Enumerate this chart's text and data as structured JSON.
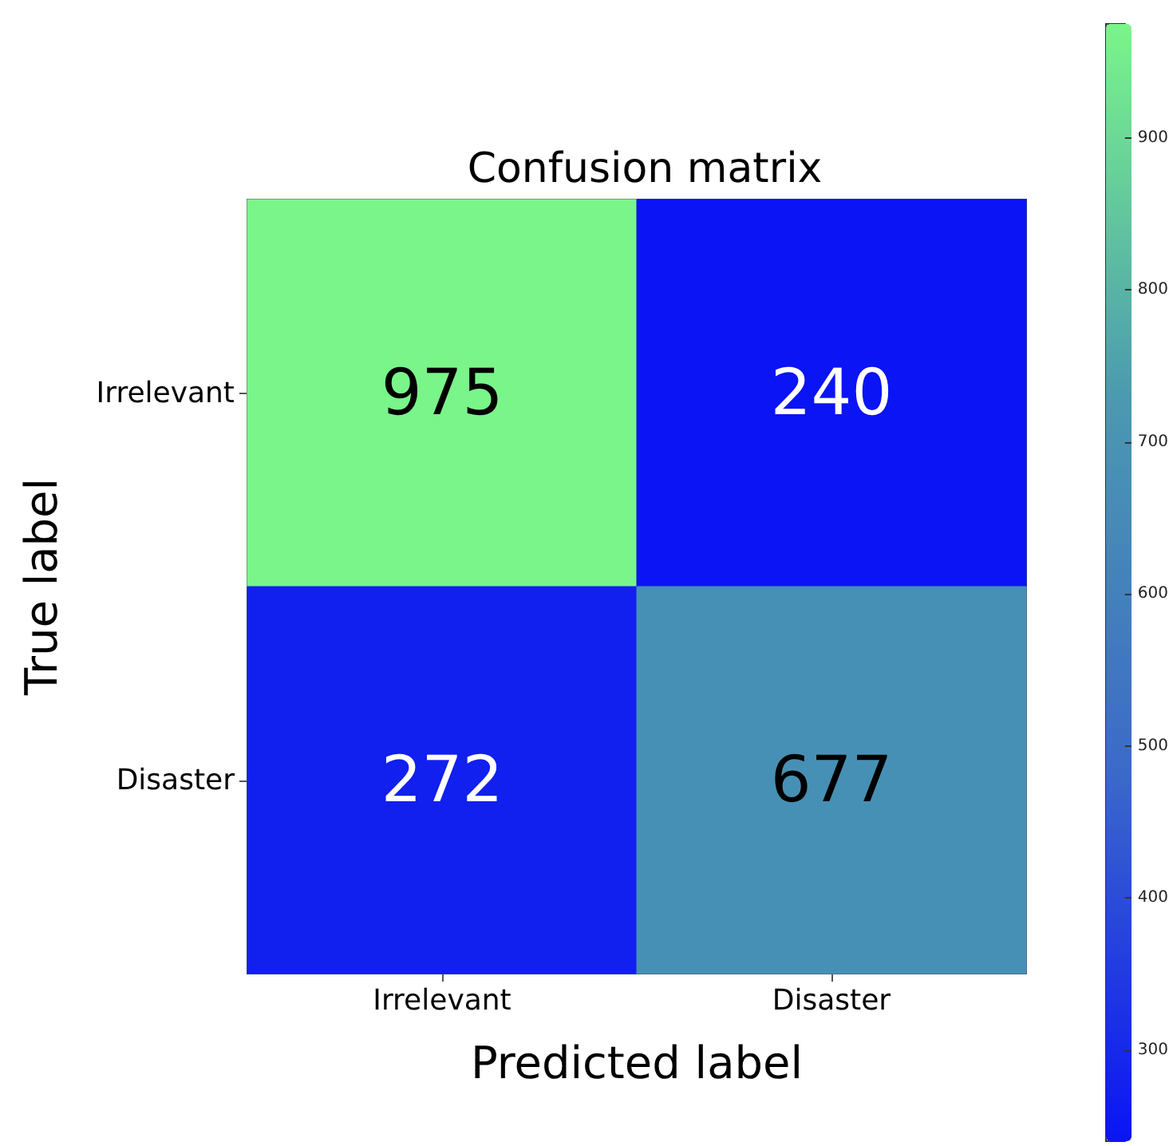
{
  "chart_data": {
    "type": "heatmap",
    "title": "Confusion matrix",
    "xlabel": "Predicted label",
    "ylabel": "True label",
    "categories": [
      "Irrelevant",
      "Disaster"
    ],
    "y_categories": [
      "Irrelevant",
      "Disaster"
    ],
    "cells": [
      [
        975,
        240
      ],
      [
        272,
        677
      ]
    ],
    "data_labels": true,
    "colors": [
      "#0a14f5",
      "#3c6ac8",
      "#4a9ab0",
      "#7af58a"
    ],
    "clim": [
      240,
      975
    ],
    "cticks": [
      300,
      400,
      500,
      600,
      700,
      800,
      900
    ]
  }
}
